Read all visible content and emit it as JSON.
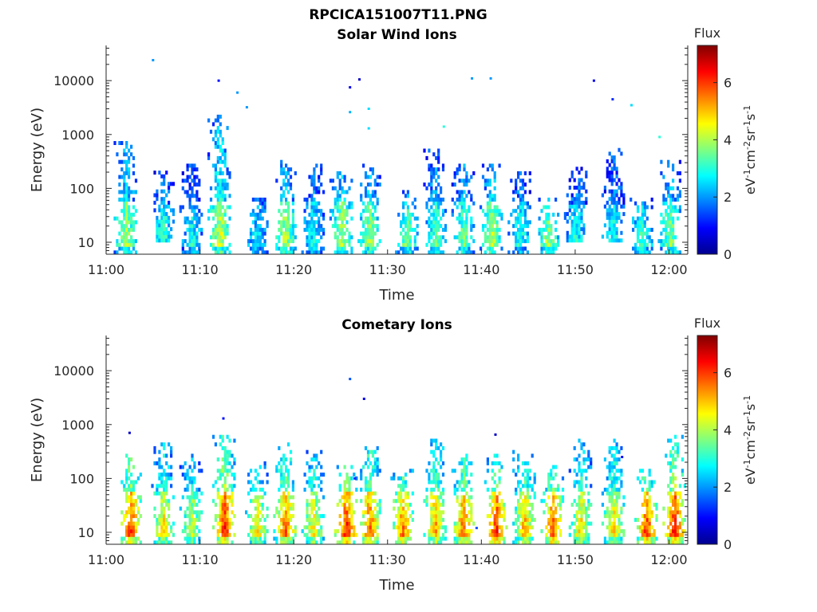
{
  "figure_title": "RPCICA151007T11.PNG",
  "chart_data": [
    {
      "type": "heatmap",
      "title": "Solar Wind Ions",
      "xlabel": "Time",
      "ylabel": "Energy (eV)",
      "yscale": "log",
      "ylim": [
        6,
        45000
      ],
      "xlim": [
        "11:00",
        "12:02"
      ],
      "x_ticks": [
        "11:00",
        "11:10",
        "11:20",
        "11:30",
        "11:40",
        "11:50",
        "12:00"
      ],
      "y_ticks": [
        "10",
        "100",
        "1000",
        "10000"
      ],
      "colorbar": {
        "title": "Flux",
        "label": "eV-1cm-2sr-1s-1",
        "range": [
          0,
          7.3
        ],
        "ticks": [
          "0",
          "2",
          "4",
          "6"
        ]
      },
      "peak_flux": 4.5,
      "bursts": [
        {
          "t": "11:02",
          "e_min": 6,
          "e_max": 700,
          "peak": 4.2
        },
        {
          "t": "11:06",
          "e_min": 10,
          "e_max": 200,
          "peak": 3.2
        },
        {
          "t": "11:09",
          "e_min": 6,
          "e_max": 250,
          "peak": 3.0
        },
        {
          "t": "11:12",
          "e_min": 6,
          "e_max": 2000,
          "peak": 4.5
        },
        {
          "t": "11:16",
          "e_min": 6,
          "e_max": 60,
          "peak": 3.0
        },
        {
          "t": "11:19",
          "e_min": 6,
          "e_max": 300,
          "peak": 4.3
        },
        {
          "t": "11:22",
          "e_min": 6,
          "e_max": 250,
          "peak": 3.0
        },
        {
          "t": "11:25",
          "e_min": 6,
          "e_max": 200,
          "peak": 4.4
        },
        {
          "t": "11:28",
          "e_min": 6,
          "e_max": 250,
          "peak": 4.2
        },
        {
          "t": "11:32",
          "e_min": 6,
          "e_max": 80,
          "peak": 4.0
        },
        {
          "t": "11:35",
          "e_min": 6,
          "e_max": 500,
          "peak": 3.5
        },
        {
          "t": "11:38",
          "e_min": 6,
          "e_max": 250,
          "peak": 3.8
        },
        {
          "t": "11:41",
          "e_min": 6,
          "e_max": 250,
          "peak": 4.4
        },
        {
          "t": "11:44",
          "e_min": 6,
          "e_max": 200,
          "peak": 3.2
        },
        {
          "t": "11:47",
          "e_min": 6,
          "e_max": 60,
          "peak": 4.3
        },
        {
          "t": "11:50",
          "e_min": 10,
          "e_max": 250,
          "peak": 3.0
        },
        {
          "t": "11:54",
          "e_min": 10,
          "e_max": 500,
          "peak": 3.0
        },
        {
          "t": "11:57",
          "e_min": 6,
          "e_max": 60,
          "peak": 3.6
        },
        {
          "t": "12:00",
          "e_min": 6,
          "e_max": 300,
          "peak": 4.0
        }
      ],
      "isolated_points": [
        {
          "t": "11:05",
          "e": 24000,
          "flux": 2.0
        },
        {
          "t": "11:12",
          "e": 10000,
          "flux": 1.0
        },
        {
          "t": "11:14",
          "e": 6000,
          "flux": 2.0
        },
        {
          "t": "11:15",
          "e": 3200,
          "flux": 2.0
        },
        {
          "t": "11:26",
          "e": 7500,
          "flux": 0.8
        },
        {
          "t": "11:27",
          "e": 10500,
          "flux": 0.5
        },
        {
          "t": "11:26",
          "e": 2600,
          "flux": 2.2
        },
        {
          "t": "11:28",
          "e": 3000,
          "flux": 2.5
        },
        {
          "t": "11:28",
          "e": 1300,
          "flux": 2.5
        },
        {
          "t": "11:36",
          "e": 1400,
          "flux": 3.0
        },
        {
          "t": "11:39",
          "e": 11000,
          "flux": 2.0
        },
        {
          "t": "11:41",
          "e": 11000,
          "flux": 2.0
        },
        {
          "t": "11:52",
          "e": 10000,
          "flux": 0.8
        },
        {
          "t": "11:54",
          "e": 4500,
          "flux": 1.2
        },
        {
          "t": "11:56",
          "e": 3500,
          "flux": 2.5
        },
        {
          "t": "11:59",
          "e": 900,
          "flux": 3.0
        }
      ]
    },
    {
      "type": "heatmap",
      "title": "Cometary Ions",
      "xlabel": "Time",
      "ylabel": "Energy (eV)",
      "yscale": "log",
      "ylim": [
        6,
        45000
      ],
      "xlim": [
        "11:00",
        "12:02"
      ],
      "x_ticks": [
        "11:00",
        "11:10",
        "11:20",
        "11:30",
        "11:40",
        "11:50",
        "12:00"
      ],
      "y_ticks": [
        "10",
        "100",
        "1000",
        "10000"
      ],
      "colorbar": {
        "title": "Flux",
        "label": "eV-1cm-2sr-1s-1",
        "range": [
          0,
          7.3
        ],
        "ticks": [
          "0",
          "2",
          "4",
          "6"
        ]
      },
      "peak_flux": 6.6,
      "bursts": [
        {
          "t": "11:02.5",
          "e_min": 6,
          "e_max": 250,
          "peak": 6.5
        },
        {
          "t": "11:06",
          "e_min": 6,
          "e_max": 400,
          "peak": 5.0
        },
        {
          "t": "11:09",
          "e_min": 6,
          "e_max": 250,
          "peak": 4.5
        },
        {
          "t": "11:12.5",
          "e_min": 6,
          "e_max": 600,
          "peak": 6.5
        },
        {
          "t": "11:16",
          "e_min": 6,
          "e_max": 200,
          "peak": 5.0
        },
        {
          "t": "11:19",
          "e_min": 6,
          "e_max": 400,
          "peak": 6.0
        },
        {
          "t": "11:22",
          "e_min": 6,
          "e_max": 300,
          "peak": 5.0
        },
        {
          "t": "11:25.5",
          "e_min": 6,
          "e_max": 200,
          "peak": 6.6
        },
        {
          "t": "11:28",
          "e_min": 6,
          "e_max": 400,
          "peak": 6.0
        },
        {
          "t": "11:31.5",
          "e_min": 6,
          "e_max": 150,
          "peak": 6.0
        },
        {
          "t": "11:35",
          "e_min": 6,
          "e_max": 500,
          "peak": 5.5
        },
        {
          "t": "11:38",
          "e_min": 6,
          "e_max": 300,
          "peak": 6.0
        },
        {
          "t": "11:41.5",
          "e_min": 6,
          "e_max": 250,
          "peak": 6.5
        },
        {
          "t": "11:44.5",
          "e_min": 6,
          "e_max": 300,
          "peak": 5.5
        },
        {
          "t": "11:47.5",
          "e_min": 6,
          "e_max": 200,
          "peak": 6.2
        },
        {
          "t": "11:50.5",
          "e_min": 6,
          "e_max": 500,
          "peak": 5.0
        },
        {
          "t": "11:54",
          "e_min": 6,
          "e_max": 500,
          "peak": 5.0
        },
        {
          "t": "11:57.5",
          "e_min": 6,
          "e_max": 150,
          "peak": 6.5
        },
        {
          "t": "12:00.5",
          "e_min": 6,
          "e_max": 600,
          "peak": 6.6
        }
      ],
      "isolated_points": [
        {
          "t": "11:02.5",
          "e": 700,
          "flux": 0.5
        },
        {
          "t": "11:12.5",
          "e": 1300,
          "flux": 1.0
        },
        {
          "t": "11:26",
          "e": 7000,
          "flux": 1.5
        },
        {
          "t": "11:27.5",
          "e": 3000,
          "flux": 0.8
        },
        {
          "t": "11:41.5",
          "e": 650,
          "flux": 0.5
        },
        {
          "t": "11:26.5",
          "e": 100,
          "flux": 1.2
        },
        {
          "t": "11:39.5",
          "e": 12,
          "flux": 1.5
        },
        {
          "t": "11:55",
          "e": 250,
          "flux": 1.0
        }
      ]
    }
  ]
}
